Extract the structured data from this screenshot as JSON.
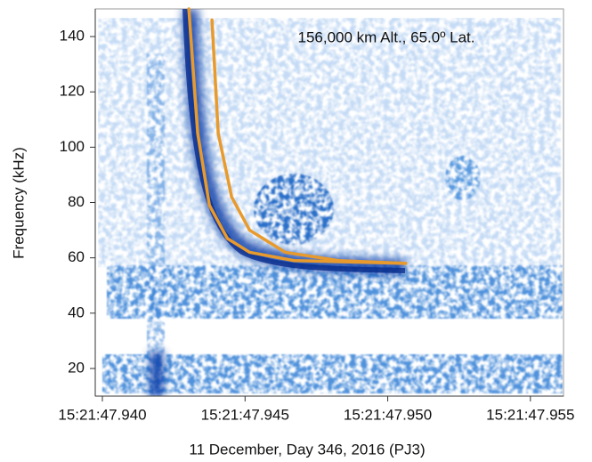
{
  "chart_data": {
    "type": "line",
    "annotation": "156,000 km Alt., 65.0º Lat.",
    "xlabel": "11 December, Day 346, 2016 (PJ3)",
    "ylabel": "Frequency (kHz)",
    "xlim": [
      47.93975,
      47.95616
    ],
    "ylim": [
      10,
      150
    ],
    "xticks": [
      {
        "value": 47.94,
        "label": "15:21:47.940"
      },
      {
        "value": 47.945,
        "label": "15:21:47.945"
      },
      {
        "value": 47.95,
        "label": "15:21:47.950"
      },
      {
        "value": 47.955,
        "label": "15:21:47.955"
      }
    ],
    "yticks": [
      20,
      40,
      60,
      80,
      100,
      120,
      140
    ],
    "series": [
      {
        "color": "#e89a2c",
        "x": [
          47.94303,
          47.94334,
          47.94375,
          47.94438,
          47.94516,
          47.94672,
          47.95063
        ],
        "values": [
          150,
          105,
          79,
          67,
          62,
          59,
          58
        ]
      },
      {
        "color": "#e89a2c",
        "x": [
          47.94384,
          47.94406,
          47.94453,
          47.94516,
          47.94641,
          47.94828,
          47.95063
        ],
        "values": [
          146,
          105,
          82,
          70,
          62,
          59,
          58
        ]
      }
    ]
  }
}
